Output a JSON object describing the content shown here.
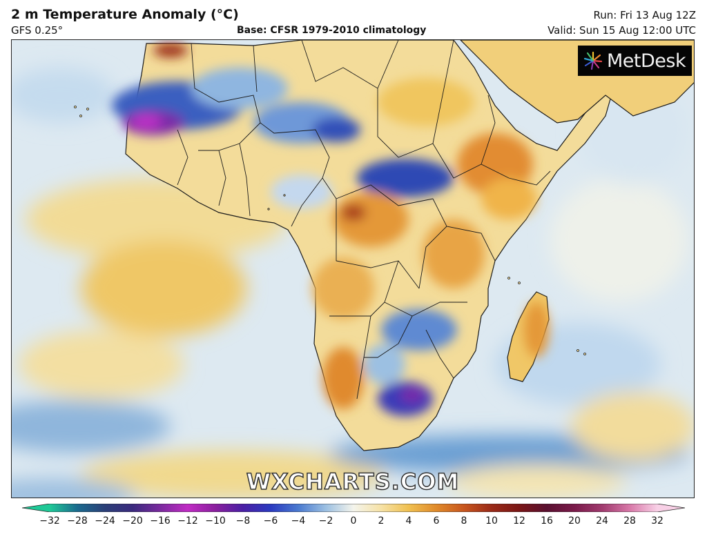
{
  "header": {
    "title": "2 m Temperature Anomaly (°C)",
    "model": "GFS 0.25°",
    "base": "Base: CFSR 1979-2010 climatology",
    "run": "Run: Fri 13 Aug 12Z",
    "valid": "Valid: Sun 15 Aug 12:00 UTC"
  },
  "map": {
    "logo_text": "MetDesk",
    "watermark": "WXCHARTS.COM",
    "ocean_color": "#dde9f1",
    "land_color": "#f3dc9a",
    "border_color": "#1a1a1a"
  },
  "colorbar": {
    "ticks": [
      "−32",
      "−28",
      "−24",
      "−20",
      "−16",
      "−12",
      "−10",
      "−8",
      "−6",
      "−4",
      "−2",
      "0",
      "2",
      "4",
      "6",
      "8",
      "10",
      "12",
      "16",
      "20",
      "24",
      "28",
      "32"
    ],
    "colors": [
      "#1fc997",
      "#1a6a8e",
      "#2b3f78",
      "#3a2a7e",
      "#7a2a9e",
      "#c02bc4",
      "#8a1f9e",
      "#4a1fa5",
      "#2a3ac0",
      "#4a7ad0",
      "#9cc0e2",
      "#f4f4ec",
      "#f6e2a6",
      "#f0c050",
      "#e08a2a",
      "#c8561e",
      "#9a2a18",
      "#7a1616",
      "#5a1030",
      "#7a1a4a",
      "#a03a6e",
      "#d878a8",
      "#f8d0e6"
    ]
  }
}
